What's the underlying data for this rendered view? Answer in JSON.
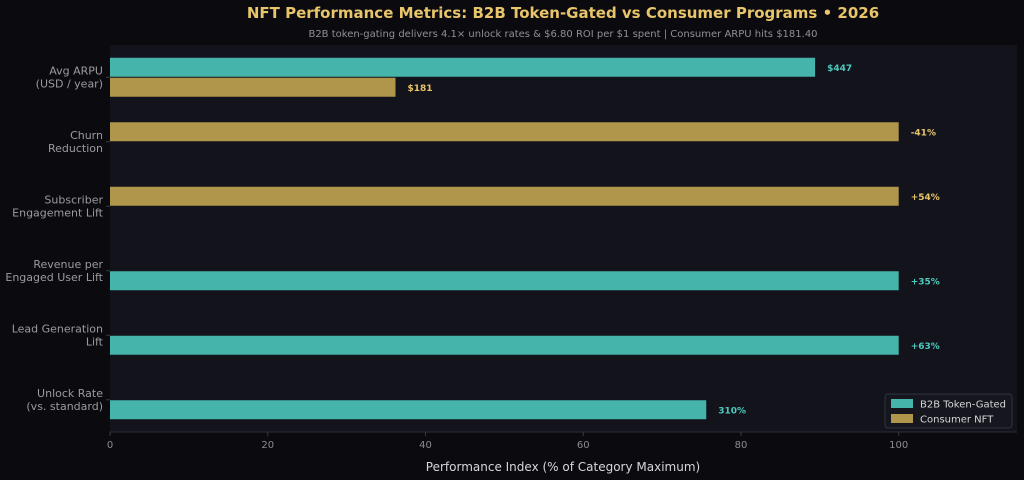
{
  "chart_data": {
    "type": "bar",
    "orientation": "horizontal",
    "title": "NFT Performance Metrics: B2B Token-Gated vs Consumer Programs  •  2026",
    "subtitle": "B2B token-gating delivers 4.1× unlock rates & $6.80 ROI per $1 spent  |  Consumer ARPU hits $181.40",
    "xlabel": "Performance Index (% of Category Maximum)",
    "xlim": [
      0,
      115
    ],
    "xticks": [
      "0",
      "20",
      "40",
      "60",
      "80",
      "100"
    ],
    "grid": false,
    "legend_position": "bottom-right",
    "categories": [
      [
        "Avg ARPU",
        "(USD / year)"
      ],
      [
        "Churn",
        "Reduction"
      ],
      [
        "Subscriber",
        "Engagement Lift"
      ],
      [
        "Revenue per",
        "Engaged User Lift"
      ],
      [
        "Lead Generation",
        "Lift"
      ],
      [
        "Unlock Rate",
        "(vs. standard)"
      ]
    ],
    "series": [
      {
        "name": "B2B Token-Gated",
        "color": "#45b5ab",
        "label_color": "#4ec9bd",
        "values": [
          89.4,
          null,
          null,
          100,
          100,
          75.6
        ],
        "labels": [
          "$447",
          "",
          "",
          "+35%",
          "+63%",
          "310%"
        ]
      },
      {
        "name": "Consumer NFT",
        "color": "#b0964a",
        "label_color": "#e8c46a",
        "values": [
          36.2,
          100,
          100,
          null,
          null,
          null
        ],
        "labels": [
          "$181",
          "-41%",
          "+54%",
          "",
          "",
          ""
        ]
      }
    ]
  }
}
